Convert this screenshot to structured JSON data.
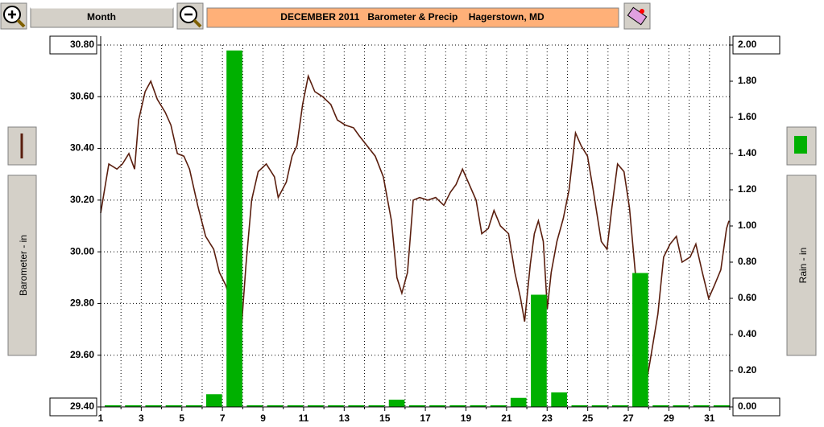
{
  "toolbar": {
    "period": "Month"
  },
  "chart_data": {
    "type": "combo",
    "title": "DECEMBER 2011   Barometer & Precip    Hagerstown, MD",
    "ylabel": "Barometer - in",
    "y2label": "Rain - in",
    "xlim": [
      1,
      32
    ],
    "xticks": [
      1,
      3,
      5,
      7,
      9,
      11,
      13,
      15,
      17,
      19,
      21,
      23,
      25,
      27,
      29,
      31
    ],
    "xminorticks": [
      2,
      4,
      6,
      8,
      10,
      12,
      14,
      16,
      18,
      20,
      22,
      24,
      26,
      28,
      30
    ],
    "ylim": [
      29.4,
      30.8
    ],
    "yticks": [
      {
        "value": 29.4,
        "label": "29.40"
      },
      {
        "value": 29.6,
        "label": "29.60"
      },
      {
        "value": 29.8,
        "label": "29.80"
      },
      {
        "value": 30.0,
        "label": "30.00"
      },
      {
        "value": 30.2,
        "label": "30.20"
      },
      {
        "value": 30.4,
        "label": "30.40"
      },
      {
        "value": 30.6,
        "label": "30.60"
      },
      {
        "value": 30.8,
        "label": "30.80"
      }
    ],
    "y2lim": [
      0,
      2
    ],
    "y2ticks": [
      {
        "value": 0,
        "label": "0.00"
      },
      {
        "value": 0.2,
        "label": "0.20"
      },
      {
        "value": 0.4,
        "label": "0.40"
      },
      {
        "value": 0.6,
        "label": "0.60"
      },
      {
        "value": 0.8,
        "label": "0.80"
      },
      {
        "value": 1.0,
        "label": "1.00"
      },
      {
        "value": 1.2,
        "label": "1.20"
      },
      {
        "value": 1.4,
        "label": "1.40"
      },
      {
        "value": 1.6,
        "label": "1.60"
      },
      {
        "value": 1.8,
        "label": "1.80"
      },
      {
        "value": 2.0,
        "label": "2.00"
      }
    ],
    "grid": true,
    "series": [
      {
        "type": "line",
        "color": "#5a1e0e",
        "x": [
          1.0,
          1.4,
          1.8,
          2.07,
          2.39,
          2.67,
          2.87,
          3.19,
          3.47,
          3.79,
          4.18,
          4.46,
          4.78,
          5.1,
          5.38,
          5.78,
          6.17,
          6.57,
          6.85,
          7.17,
          7.49,
          7.77,
          7.96,
          8.16,
          8.44,
          8.76,
          9.16,
          9.56,
          9.75,
          10.15,
          10.43,
          10.67,
          10.95,
          11.23,
          11.55,
          11.94,
          12.34,
          12.66,
          13.06,
          13.46,
          13.73,
          14.13,
          14.53,
          14.93,
          15.33,
          15.6,
          15.84,
          16.12,
          16.4,
          16.72,
          17.12,
          17.51,
          17.91,
          18.23,
          18.51,
          18.83,
          19.11,
          19.5,
          19.78,
          20.1,
          20.38,
          20.7,
          21.1,
          21.41,
          21.69,
          21.89,
          22.17,
          22.37,
          22.57,
          22.81,
          23.01,
          23.2,
          23.48,
          23.8,
          24.08,
          24.4,
          24.68,
          24.99,
          25.27,
          25.67,
          25.95,
          26.19,
          26.47,
          26.79,
          27.06,
          27.38,
          27.66,
          27.86,
          28.06,
          28.46,
          28.74,
          29.06,
          29.37,
          29.65,
          30.05,
          30.33,
          30.65,
          30.96,
          31.24,
          31.56,
          31.84,
          31.96
        ],
        "values": [
          30.15,
          30.34,
          30.32,
          30.34,
          30.38,
          30.32,
          30.51,
          30.62,
          30.66,
          30.59,
          30.54,
          30.49,
          30.38,
          30.37,
          30.32,
          30.18,
          30.06,
          30.01,
          29.92,
          29.87,
          29.79,
          29.62,
          29.73,
          29.95,
          30.2,
          30.31,
          30.34,
          30.29,
          30.21,
          30.27,
          30.37,
          30.41,
          30.57,
          30.68,
          30.62,
          30.6,
          30.57,
          30.51,
          30.49,
          30.48,
          30.45,
          30.41,
          30.37,
          30.29,
          30.12,
          29.9,
          29.84,
          29.92,
          30.2,
          30.21,
          30.2,
          30.21,
          30.18,
          30.23,
          30.26,
          30.32,
          30.27,
          30.2,
          30.07,
          30.09,
          30.16,
          30.1,
          30.07,
          29.92,
          29.82,
          29.73,
          29.95,
          30.07,
          30.12,
          30.04,
          29.78,
          29.92,
          30.04,
          30.13,
          30.24,
          30.46,
          30.41,
          30.37,
          30.24,
          30.04,
          30.01,
          30.17,
          30.34,
          30.31,
          30.17,
          29.89,
          29.51,
          29.48,
          29.57,
          29.76,
          29.98,
          30.03,
          30.06,
          29.96,
          29.98,
          30.03,
          29.92,
          29.82,
          29.87,
          29.93,
          30.09,
          30.12
        ]
      },
      {
        "type": "bar",
        "axis": "y2",
        "color": "#00b000",
        "x": [
          1,
          2,
          3,
          4,
          5,
          6,
          7,
          8,
          9,
          10,
          11,
          12,
          13,
          14,
          15,
          16,
          17,
          18,
          19,
          20,
          21,
          22,
          23,
          24,
          25,
          26,
          27,
          28,
          29,
          30,
          31
        ],
        "values": [
          0,
          0,
          0,
          0,
          0,
          0.07,
          1.97,
          0,
          0,
          0,
          0,
          0,
          0,
          0,
          0.04,
          0,
          0,
          0,
          0,
          0,
          0.05,
          0.62,
          0.08,
          0,
          0,
          0,
          0.74,
          0,
          0,
          0,
          0
        ]
      }
    ]
  }
}
